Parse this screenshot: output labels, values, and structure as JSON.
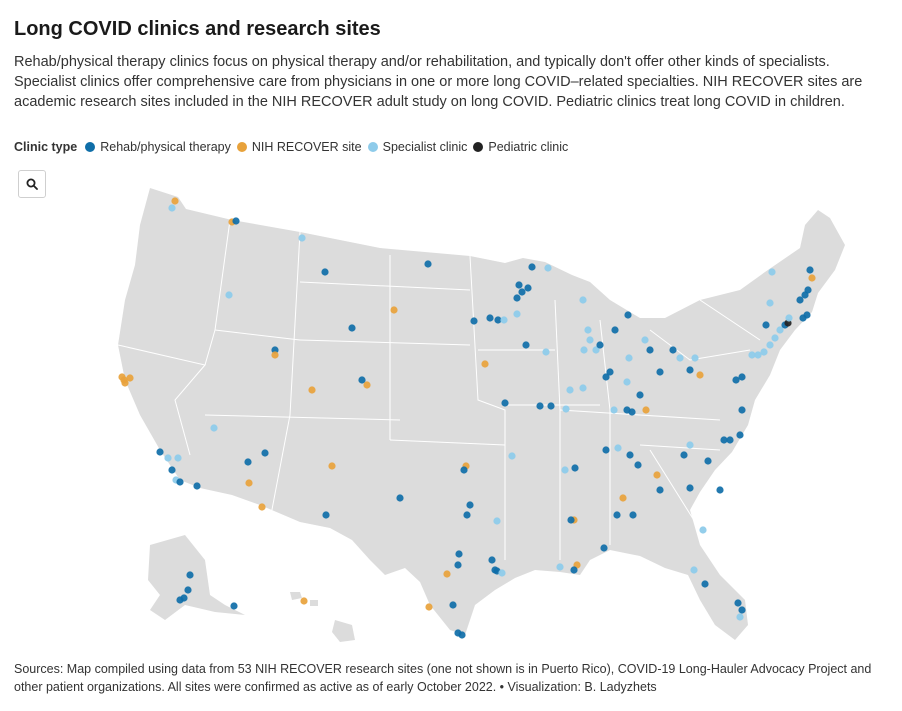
{
  "title": "Long COVID clinics and research sites",
  "subtitle": "Rehab/physical therapy clinics focus on physical therapy and/or rehabilitation, and typically don't offer other kinds of specialists. Specialist clinics offer comprehensive care from physicians in one or more long COVID–related specialties. NIH RECOVER sites are academic research sites included in the NIH RECOVER adult study on long COVID. Pediatric clinics treat long COVID in children.",
  "legend": {
    "title": "Clinic type",
    "items": [
      {
        "label": "Rehab/physical therapy",
        "color": "#0f6ea8"
      },
      {
        "label": "NIH RECOVER site",
        "color": "#e8a23b"
      },
      {
        "label": "Specialist clinic",
        "color": "#8ecbea"
      },
      {
        "label": "Pediatric clinic",
        "color": "#222222"
      }
    ]
  },
  "zoom": {
    "icon": "search-icon"
  },
  "sources": "Sources: Map compiled using data from 53 NIH RECOVER research sites (one not shown is in Puerto Rico), COVID-19 Long-Hauler Advocacy Project and other patient organizations. All sites were confirmed as active as of early October 2022. • Visualization: B. Ladyzhets",
  "map_colors": {
    "land": "#dcdcdc",
    "border": "#ffffff"
  }
}
